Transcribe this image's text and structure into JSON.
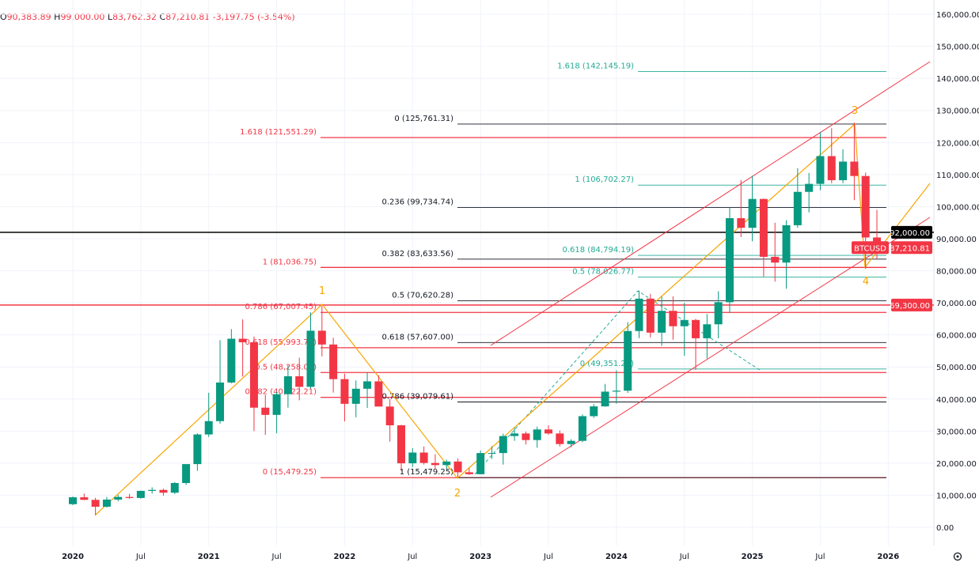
{
  "header": {
    "open_key": "O",
    "open": "90,383.89",
    "high_key": "H",
    "high": "99,000.00",
    "low_key": "L",
    "low": "83,762.32",
    "close_key": "C",
    "close": "87,210.81",
    "change": "-3,197.75 (-3.54%)"
  },
  "colors": {
    "up": "#089981",
    "down": "#f23645",
    "fib_red": "#f23645",
    "fib_black": "#131722",
    "fib_green": "#22ab94",
    "wave": "#f7a600",
    "channel": "#f23645"
  },
  "chart_data": {
    "type": "candlestick",
    "symbol": "BTCUSD",
    "interval": "monthly",
    "ylim": [
      0,
      160000
    ],
    "y_ticks": [
      "160,000.00",
      "150,000.00",
      "140,000.00",
      "130,000.00",
      "120,000.00",
      "110,000.00",
      "100,000.00",
      "90,000.00",
      "80,000.00",
      "70,000.00",
      "60,000.00",
      "50,000.00",
      "40,000.00",
      "30,000.00",
      "20,000.00",
      "10,000.00",
      "0.00"
    ],
    "x_ticks": [
      "2020",
      "Jul",
      "2021",
      "Jul",
      "2022",
      "Jul",
      "2023",
      "Jul",
      "2024",
      "Jul",
      "2025",
      "Jul",
      "2026"
    ],
    "start": "2020-01",
    "ohlc": [
      [
        7200,
        9580,
        6900,
        9350
      ],
      [
        9350,
        10500,
        8450,
        8550
      ],
      [
        8550,
        9200,
        3850,
        6410
      ],
      [
        6410,
        9450,
        6150,
        8630
      ],
      [
        8630,
        10080,
        8100,
        9450
      ],
      [
        9450,
        10400,
        8900,
        9140
      ],
      [
        9140,
        11450,
        8950,
        11350
      ],
      [
        11350,
        12470,
        10500,
        11650
      ],
      [
        11650,
        12050,
        9850,
        10780
      ],
      [
        10780,
        14100,
        10370,
        13800
      ],
      [
        13800,
        19480,
        13200,
        19700
      ],
      [
        19700,
        29300,
        17600,
        28950
      ],
      [
        28950,
        41950,
        28150,
        33100
      ],
      [
        33100,
        58350,
        32300,
        45150
      ],
      [
        45150,
        61800,
        44900,
        58800
      ],
      [
        58800,
        64850,
        47000,
        57700
      ],
      [
        57700,
        59500,
        30000,
        37300
      ],
      [
        37300,
        41300,
        28800,
        35050
      ],
      [
        35050,
        42300,
        29300,
        41500
      ],
      [
        41500,
        50500,
        37300,
        47100
      ],
      [
        47100,
        52900,
        39600,
        43800
      ],
      [
        43800,
        67000,
        43300,
        61300
      ],
      [
        61300,
        69000,
        53300,
        57000
      ],
      [
        57000,
        59100,
        42000,
        46200
      ],
      [
        46200,
        47900,
        33000,
        38500
      ],
      [
        38500,
        45800,
        34300,
        43200
      ],
      [
        43200,
        48200,
        37200,
        45500
      ],
      [
        45500,
        47450,
        37700,
        37650
      ],
      [
        37650,
        40000,
        26700,
        31800
      ],
      [
        31800,
        31950,
        17600,
        19950
      ],
      [
        19950,
        24650,
        18800,
        23300
      ],
      [
        23300,
        25200,
        19550,
        20050
      ],
      [
        20050,
        22800,
        18150,
        19400
      ],
      [
        19400,
        21100,
        18150,
        20500
      ],
      [
        20500,
        21450,
        15480,
        17150
      ],
      [
        17150,
        18400,
        16300,
        16550
      ],
      [
        16550,
        23950,
        16500,
        23150
      ],
      [
        23150,
        25250,
        21350,
        23150
      ],
      [
        23150,
        29200,
        19550,
        28450
      ],
      [
        28450,
        31000,
        26950,
        29250
      ],
      [
        29250,
        29850,
        25800,
        27200
      ],
      [
        27200,
        31400,
        24800,
        30500
      ],
      [
        30500,
        31800,
        28850,
        29250
      ],
      [
        29250,
        30200,
        25200,
        25950
      ],
      [
        25950,
        27450,
        24900,
        26950
      ],
      [
        26950,
        35200,
        26550,
        34650
      ],
      [
        34650,
        38400,
        34100,
        37700
      ],
      [
        37700,
        44700,
        37600,
        42300
      ],
      [
        42300,
        48950,
        38550,
        42600
      ],
      [
        42600,
        64000,
        41900,
        61200
      ],
      [
        61200,
        73800,
        59000,
        71300
      ],
      [
        71300,
        72800,
        59200,
        60700
      ],
      [
        60700,
        71950,
        56600,
        67500
      ],
      [
        67500,
        72000,
        58500,
        62700
      ],
      [
        62700,
        70000,
        53500,
        64650
      ],
      [
        64650,
        65000,
        49100,
        58950
      ],
      [
        58950,
        66500,
        52600,
        63300
      ],
      [
        63300,
        73600,
        58900,
        70200
      ],
      [
        70200,
        99800,
        66800,
        96400
      ],
      [
        96400,
        108300,
        90500,
        93400
      ],
      [
        93400,
        109600,
        89200,
        102400
      ],
      [
        102400,
        102500,
        78200,
        84350
      ],
      [
        84350,
        95000,
        76600,
        82550
      ],
      [
        82550,
        95750,
        74400,
        94200
      ],
      [
        94200,
        112000,
        93400,
        104600
      ],
      [
        104600,
        110500,
        98200,
        107100
      ],
      [
        107100,
        123200,
        105100,
        115750
      ],
      [
        115750,
        124450,
        107300,
        108250
      ],
      [
        108250,
        117900,
        107300,
        114050
      ],
      [
        114050,
        126200,
        102000,
        109550
      ],
      [
        109550,
        110600,
        80600,
        90380
      ],
      [
        90383.89,
        99000,
        83762.32,
        87210.81
      ]
    ],
    "fib_levels": [
      {
        "group": "red",
        "value": 121551.29,
        "label": "1.618 (121,551.29)"
      },
      {
        "group": "red",
        "value": 81036.75,
        "label": "1 (81,036.75)"
      },
      {
        "group": "red",
        "value": 67007.45,
        "label": "0.786 (67,007.45)"
      },
      {
        "group": "red",
        "value": 55993.78,
        "label": "0.618 (55,993.78)"
      },
      {
        "group": "red",
        "value": 48258.0,
        "label": "0.5 (48,258.00)"
      },
      {
        "group": "red",
        "value": 40522.21,
        "label": "0.382 (40,522.21)"
      },
      {
        "group": "red",
        "value": 15479.25,
        "label": "0 (15,479.25)"
      },
      {
        "group": "black",
        "value": 125761.31,
        "label": "0 (125,761.31)"
      },
      {
        "group": "black",
        "value": 99734.74,
        "label": "0.236 (99,734.74)"
      },
      {
        "group": "black",
        "value": 83633.56,
        "label": "0.382 (83,633.56)"
      },
      {
        "group": "black",
        "value": 70620.28,
        "label": "0.5 (70,620.28)"
      },
      {
        "group": "black",
        "value": 57607.0,
        "label": "0.618 (57,607.00)"
      },
      {
        "group": "black",
        "value": 39079.61,
        "label": "0.786 (39,079.61)"
      },
      {
        "group": "black",
        "value": 15479.25,
        "label": "1 (15,479.25)"
      },
      {
        "group": "green",
        "value": 142145.19,
        "label": "1.618 (142,145.19)"
      },
      {
        "group": "green",
        "value": 106702.27,
        "label": "1 (106,702.27)"
      },
      {
        "group": "green",
        "value": 84794.19,
        "label": "0.618 (84,794.19)"
      },
      {
        "group": "green",
        "value": 78026.77,
        "label": "0.5 (78,026.77)"
      },
      {
        "group": "green",
        "value": 49351.27,
        "label": "0 (49,351.27)"
      }
    ],
    "horizontal_lines": [
      {
        "value": 92000,
        "label": "92,000.00",
        "color": "#000000"
      },
      {
        "value": 69300,
        "label": "69,300.00",
        "color": "#f23645"
      }
    ],
    "last_price": {
      "symbol": "BTCUSD",
      "label": "87,210.81",
      "value": 87210.81
    },
    "wave_labels": [
      "1",
      "2",
      "3",
      "4"
    ]
  }
}
